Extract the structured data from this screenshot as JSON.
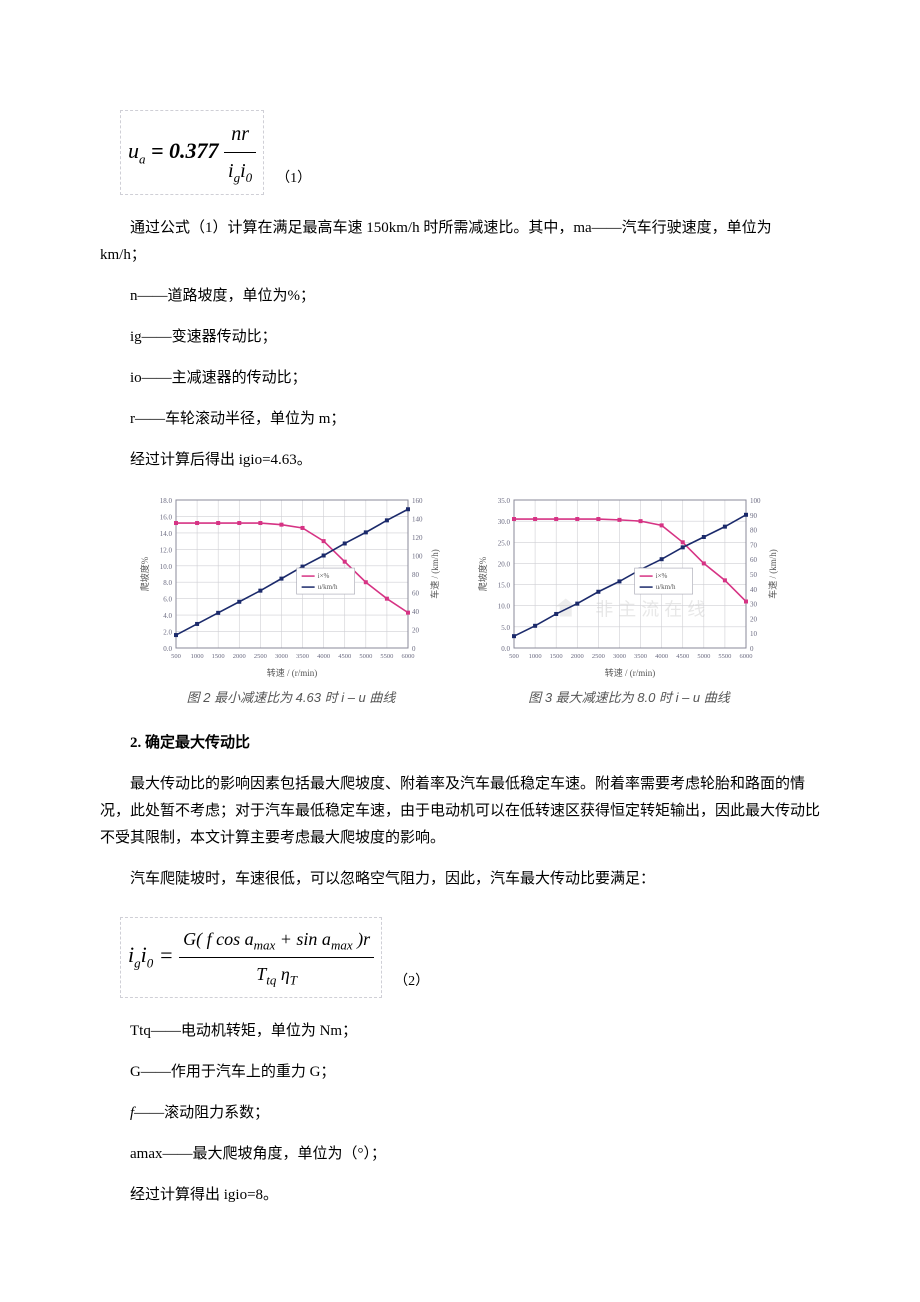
{
  "eq1": {
    "left_var": "u",
    "left_sub": "a",
    "equals": " = 0.377 ",
    "num": "nr",
    "den_i": "i",
    "den_g": "g",
    "den_i2": "i",
    "den_0": "0",
    "num_label": "（1）"
  },
  "p1": "通过公式（1）计算在满足最高车速 150km/h 时所需减速比。其中，ma——汽车行驶速度，单位为 km/h；",
  "list1": {
    "l1": "n——道路坡度，单位为%；",
    "l2": "ig——变速器传动比；",
    "l3": "io——主减速器的传动比；",
    "l4": "r——车轮滚动半径，单位为 m；",
    "l5": "经过计算后得出 igio=4.63。"
  },
  "chart_left": {
    "xlabel": "转速 / (r/min)",
    "y1label": "爬坡度%",
    "y2label": "车速 / (km/h)",
    "caption": "图 2  最小减速比为 4.63 时 i – u 曲线",
    "x_ticks": [
      "500",
      "1000",
      "1500",
      "2000",
      "2500",
      "3000",
      "3500",
      "4000",
      "4500",
      "5000",
      "5500",
      "6000"
    ],
    "y1_ticks": [
      "0.0",
      "2.0",
      "4.0",
      "6.0",
      "8.0",
      "10.0",
      "12.0",
      "14.0",
      "16.0",
      "18.0"
    ],
    "y2_ticks": [
      "0",
      "20",
      "40",
      "60",
      "80",
      "100",
      "120",
      "140",
      "160"
    ],
    "series1_color": "#d63384",
    "series2_color": "#1b2a6b",
    "grid_color": "#cfcfd4",
    "legend1": "i×%",
    "legend2": "u/km/h",
    "x": [
      500,
      1000,
      1500,
      2000,
      2500,
      3000,
      3500,
      4000,
      4500,
      5000,
      5500,
      6000
    ],
    "climb": [
      15.2,
      15.2,
      15.2,
      15.2,
      15.2,
      15.0,
      14.6,
      13.0,
      10.5,
      8.0,
      6.0,
      4.3
    ],
    "speed": [
      14,
      26,
      38,
      50,
      62,
      75,
      88,
      100,
      113,
      125,
      138,
      150
    ]
  },
  "chart_right": {
    "xlabel": "转速 / (r/min)",
    "y1label": "爬坡度%",
    "y2label": "车速 / (km/h)",
    "caption": "图 3  最大减速比为 8.0 时 i – u 曲线",
    "x_ticks": [
      "500",
      "1000",
      "1500",
      "2000",
      "2500",
      "3000",
      "3500",
      "4000",
      "4500",
      "5000",
      "5500",
      "6000"
    ],
    "y1_ticks": [
      "0.0",
      "5.0",
      "10.0",
      "15.0",
      "20.0",
      "25.0",
      "30.0",
      "35.0"
    ],
    "y2_ticks": [
      "0",
      "10",
      "20",
      "30",
      "40",
      "50",
      "60",
      "70",
      "80",
      "90",
      "100"
    ],
    "series1_color": "#d63384",
    "series2_color": "#1b2a6b",
    "grid_color": "#cfcfd4",
    "legend1": "i×%",
    "legend2": "u/km/h",
    "x": [
      500,
      1000,
      1500,
      2000,
      2500,
      3000,
      3500,
      4000,
      4500,
      5000,
      5500,
      6000
    ],
    "climb": [
      30.5,
      30.5,
      30.5,
      30.5,
      30.5,
      30.3,
      30.0,
      29.0,
      25.0,
      20.0,
      16.0,
      11.0
    ],
    "speed": [
      8,
      15,
      23,
      30,
      38,
      45,
      53,
      60,
      68,
      75,
      82,
      90
    ]
  },
  "sect2_title": "2. 确定最大传动比",
  "p2a": "最大传动比的影响因素包括最大爬坡度、附着率及汽车最低稳定车速。附着率需要考虑轮胎和路面的情况，此处暂不考虑；对于汽车最低稳定车速，由于电动机可以在低转速区获得恒定转矩输出，因此最大传动比不受其限制，本文计算主要考虑最大爬坡度的影响。",
  "p2b": "汽车爬陡坡时，车速很低，可以忽略空气阻力，因此，汽车最大传动比要满足：",
  "eq2": {
    "left_i": "i",
    "left_g": "g",
    "left_i2": "i",
    "left_0": "0",
    "equals": " = ",
    "num_text": "G( f cos a",
    "num_sub1": "max",
    "num_text2": " + sin a",
    "num_sub2": "max",
    "num_text3": " )r",
    "den_T": "T",
    "den_tq": "tq",
    "den_eta": " η",
    "den_T2": "T",
    "num_label": "（2）"
  },
  "list2": {
    "l1": "Ttq——电动机转矩，单位为 Nm；",
    "l2": "G——作用于汽车上的重力 G；",
    "l3_a": "f",
    "l3_b": "——滚动阻力系数；",
    "l4": "amax——最大爬坡角度，单位为（°）；",
    "l5": "经过计算得出 igio=8。"
  }
}
